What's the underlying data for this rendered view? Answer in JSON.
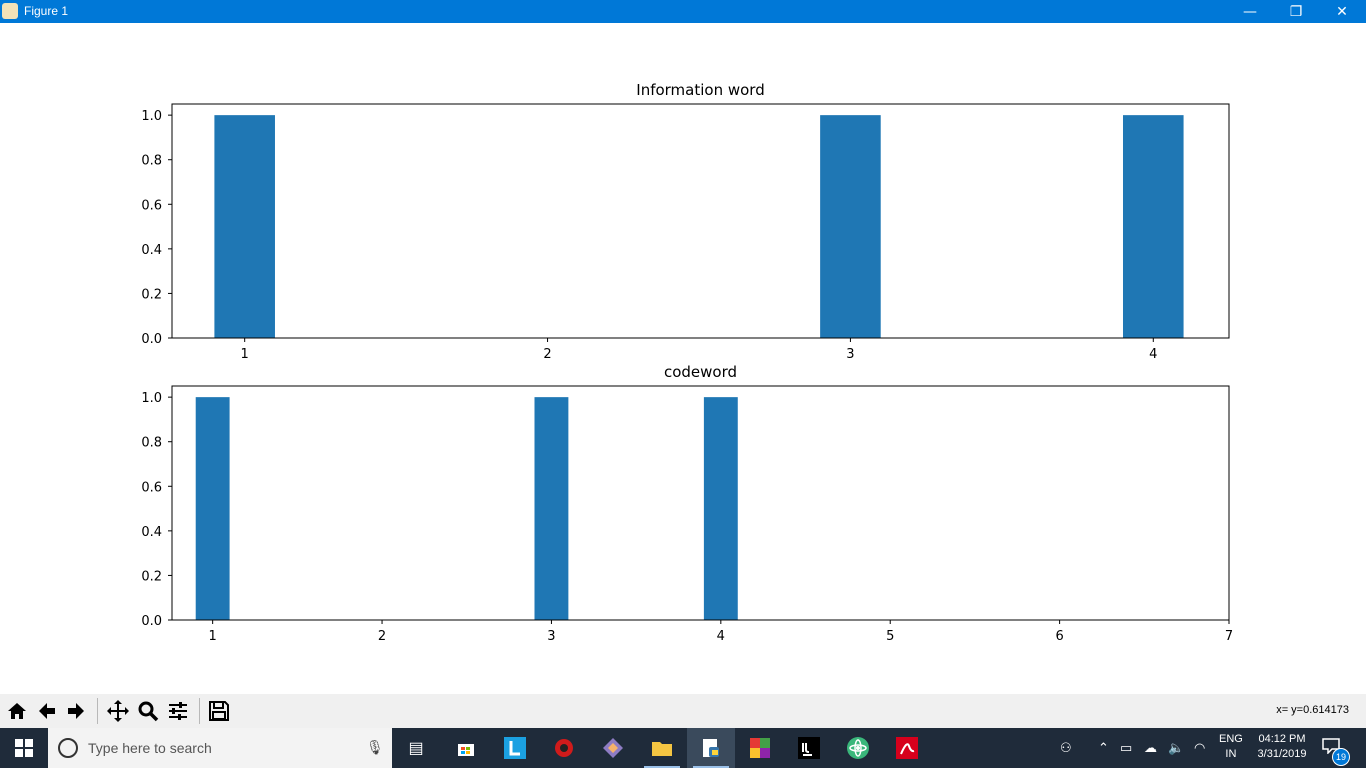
{
  "window": {
    "title": "Figure 1",
    "minimize_glyph": "—",
    "restore_glyph": "❐",
    "close_glyph": "✕"
  },
  "chart_data": [
    {
      "type": "bar",
      "title": "Information word",
      "x": [
        1,
        3,
        4
      ],
      "values": [
        1.0,
        1.0,
        1.0
      ],
      "xticks": [
        "1",
        "2",
        "3",
        "4"
      ],
      "yticks": [
        "0.0",
        "0.2",
        "0.4",
        "0.6",
        "0.8",
        "1.0"
      ],
      "xlim": [
        0.76,
        4.25
      ],
      "ylim": [
        0,
        1.05
      ],
      "bar_width": 0.2,
      "color": "#1f77b4",
      "grid": false
    },
    {
      "type": "bar",
      "title": "codeword",
      "x": [
        1,
        3,
        4
      ],
      "values": [
        1.0,
        1.0,
        1.0
      ],
      "xticks": [
        "1",
        "2",
        "3",
        "4",
        "5",
        "6",
        "7"
      ],
      "yticks": [
        "0.0",
        "0.2",
        "0.4",
        "0.6",
        "0.8",
        "1.0"
      ],
      "xlim": [
        0.76,
        7.0
      ],
      "ylim": [
        0,
        1.05
      ],
      "bar_width": 0.2,
      "color": "#1f77b4",
      "grid": false
    }
  ],
  "toolbar": {
    "home_icon": "home-icon",
    "back_icon": "arrow-left-icon",
    "forward_icon": "arrow-right-icon",
    "pan_icon": "move-icon",
    "zoom_icon": "magnifier-icon",
    "configure_icon": "sliders-icon",
    "save_icon": "floppy-disk-icon",
    "coordinates": "x= y=0.614173"
  },
  "taskbar": {
    "search_placeholder": "Type here to search",
    "language": "ENG",
    "region": "IN",
    "time": "04:12 PM",
    "date": "3/31/2019",
    "notification_count": "19",
    "accent": "#0078d7"
  }
}
